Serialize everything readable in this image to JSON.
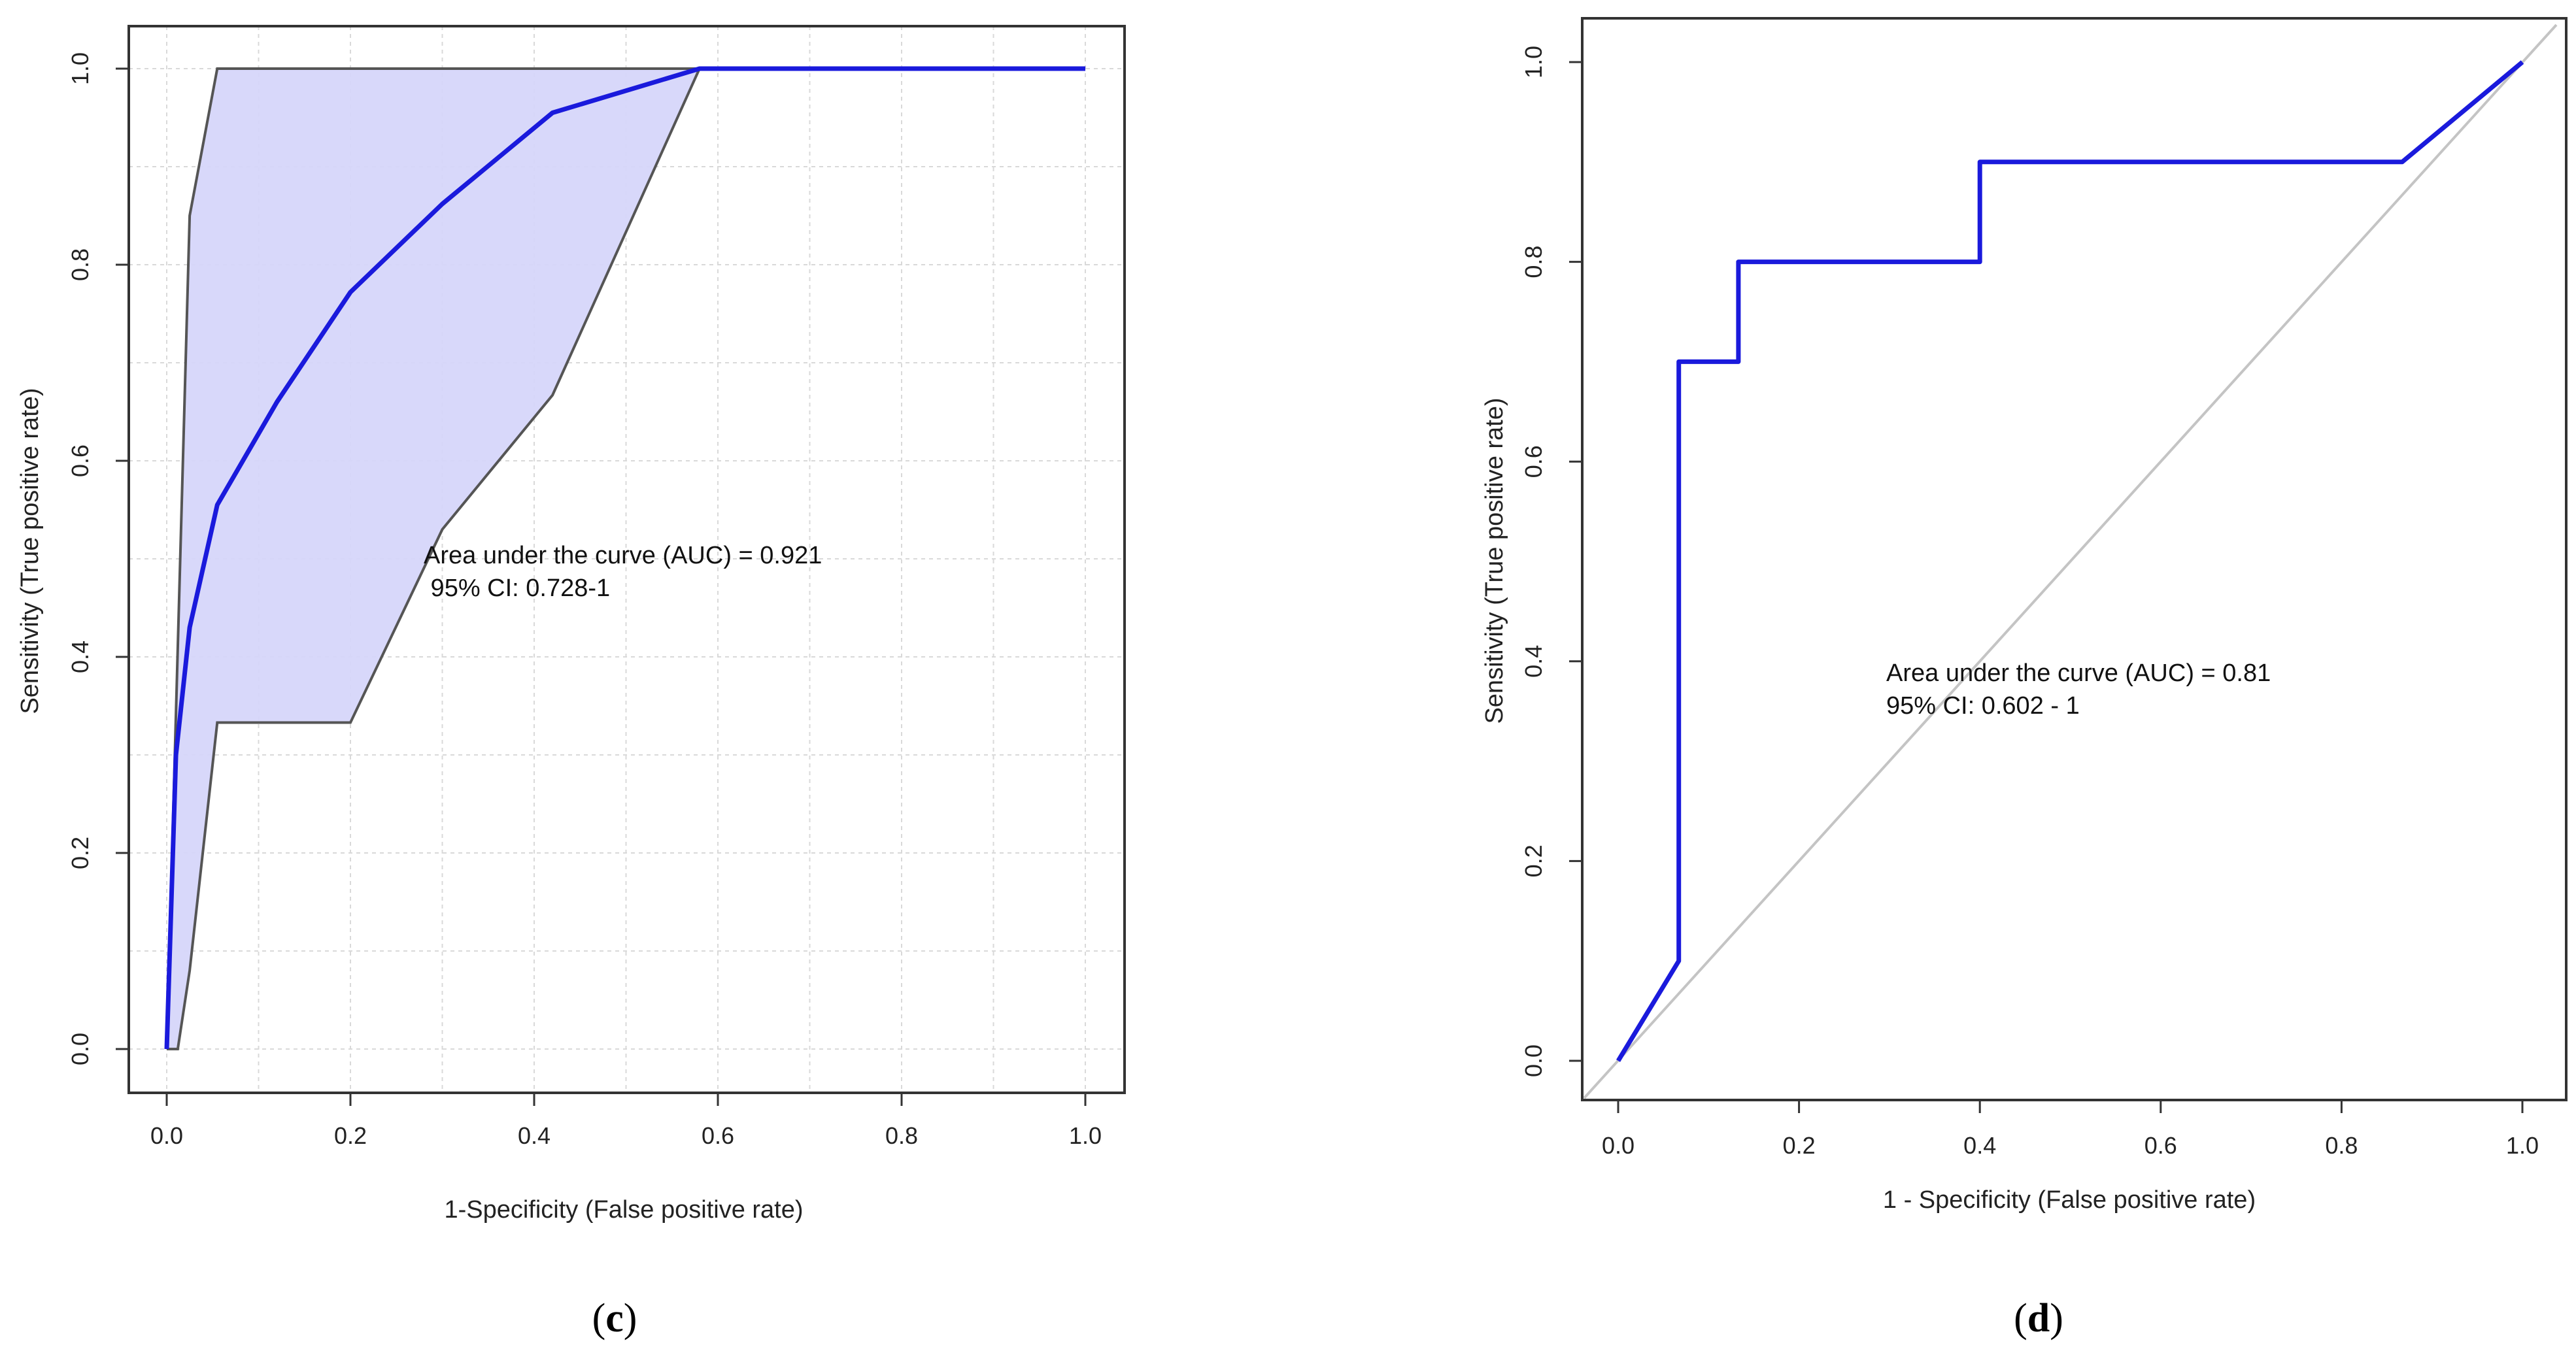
{
  "chart_data": [
    {
      "id": "c",
      "type": "line",
      "panel_label": "c",
      "xlabel": "1-Specificity (False positive rate)",
      "ylabel": "Sensitivity (True positive rate)",
      "xlim": [
        0,
        1
      ],
      "ylim": [
        0,
        1
      ],
      "x_ticks": [
        0.0,
        0.2,
        0.4,
        0.6,
        0.8,
        1.0
      ],
      "y_ticks": [
        0.0,
        0.2,
        0.4,
        0.6,
        0.8,
        1.0
      ],
      "x_tick_labels": [
        "0.0",
        "0.2",
        "0.4",
        "0.6",
        "0.8",
        "1.0"
      ],
      "y_tick_labels": [
        "0.0",
        "0.2",
        "0.4",
        "0.6",
        "0.8",
        "1.0"
      ],
      "grid": true,
      "annotation": [
        "Area under the curve (AUC) = 0.921",
        " 95% CI: 0.728-1"
      ],
      "ci_upper": {
        "name": "CI upper bound",
        "x": [
          0.0,
          0.025,
          0.055,
          0.58,
          1.0
        ],
        "y": [
          0.0,
          0.85,
          1.0,
          1.0,
          1.0
        ]
      },
      "ci_lower": {
        "name": "CI lower bound",
        "x": [
          0.0,
          0.012,
          0.025,
          0.055,
          0.2,
          0.3,
          0.42,
          0.58,
          1.0
        ],
        "y": [
          0.0,
          0.0,
          0.08,
          0.333,
          0.333,
          0.53,
          0.667,
          1.0,
          1.0
        ]
      },
      "series": [
        {
          "name": "ROC curve",
          "color": "#1a1adc",
          "x": [
            0.0,
            0.01,
            0.025,
            0.055,
            0.12,
            0.2,
            0.3,
            0.42,
            0.58,
            0.75,
            1.0
          ],
          "y": [
            0.0,
            0.3,
            0.43,
            0.555,
            0.66,
            0.772,
            0.862,
            0.955,
            1.0,
            1.0,
            1.0
          ]
        }
      ]
    },
    {
      "id": "d",
      "type": "line",
      "panel_label": "d",
      "xlabel": "1 - Specificity (False positive rate)",
      "ylabel": "Sensitivity (True positive rate)",
      "xlim": [
        0,
        1
      ],
      "ylim": [
        0,
        1
      ],
      "x_ticks": [
        0.0,
        0.2,
        0.4,
        0.6,
        0.8,
        1.0
      ],
      "y_ticks": [
        0.0,
        0.2,
        0.4,
        0.6,
        0.8,
        1.0
      ],
      "x_tick_labels": [
        "0.0",
        "0.2",
        "0.4",
        "0.6",
        "0.8",
        "1.0"
      ],
      "y_tick_labels": [
        "0.0",
        "0.2",
        "0.4",
        "0.6",
        "0.8",
        "1.0"
      ],
      "grid": false,
      "annotation": [
        "Area under the curve (AUC) = 0.81",
        "95% CI: 0.602 - 1"
      ],
      "reference_line": {
        "x": [
          0,
          1
        ],
        "y": [
          0,
          1
        ]
      },
      "series": [
        {
          "name": "ROC curve",
          "color": "#1a1adc",
          "x": [
            0.0,
            0.067,
            0.067,
            0.133,
            0.133,
            0.4,
            0.4,
            0.867,
            1.0
          ],
          "y": [
            0.0,
            0.1,
            0.7,
            0.7,
            0.8,
            0.8,
            0.9,
            0.9,
            1.0
          ]
        }
      ]
    }
  ]
}
